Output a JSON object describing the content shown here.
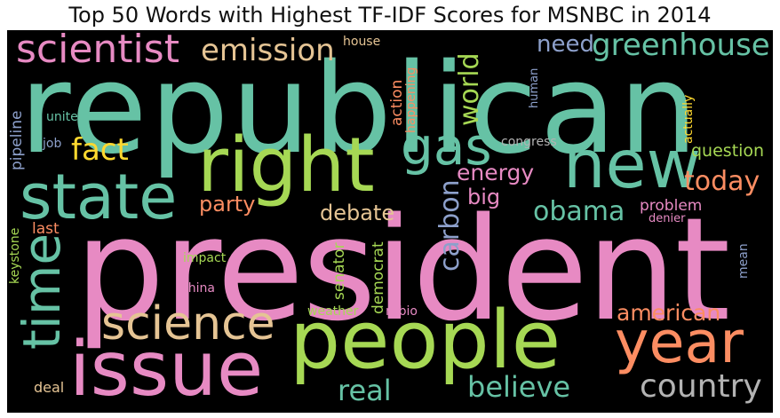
{
  "title": "Top 50 Words with Highest TF-IDF Scores for MSNBC in 2014",
  "palette": {
    "teal": "#66c2a5",
    "orange": "#fc8d62",
    "blue": "#8da0cb",
    "pink": "#e78ac3",
    "green": "#a6d854",
    "yellow": "#ffd92f",
    "tan": "#e5c494",
    "gray": "#b3b3b3"
  },
  "words": [
    {
      "text": "republican",
      "color": "#66c2a5"
    },
    {
      "text": "president",
      "color": "#e78ac3"
    },
    {
      "text": "people",
      "color": "#a6d854"
    },
    {
      "text": "right",
      "color": "#a6d854"
    },
    {
      "text": "state",
      "color": "#66c2a5"
    },
    {
      "text": "issue",
      "color": "#e78ac3"
    },
    {
      "text": "new",
      "color": "#66c2a5"
    },
    {
      "text": "year",
      "color": "#fc8d62"
    },
    {
      "text": "time",
      "color": "#66c2a5"
    },
    {
      "text": "science",
      "color": "#e5c494"
    },
    {
      "text": "scientist",
      "color": "#e78ac3"
    },
    {
      "text": "gas",
      "color": "#66c2a5"
    },
    {
      "text": "greenhouse",
      "color": "#66c2a5"
    },
    {
      "text": "emission",
      "color": "#e5c494"
    },
    {
      "text": "carbon",
      "color": "#8da0cb"
    },
    {
      "text": "country",
      "color": "#b3b3b3"
    },
    {
      "text": "believe",
      "color": "#66c2a5"
    },
    {
      "text": "real",
      "color": "#66c2a5"
    },
    {
      "text": "obama",
      "color": "#66c2a5"
    },
    {
      "text": "world",
      "color": "#a6d854"
    },
    {
      "text": "fact",
      "color": "#ffd92f"
    },
    {
      "text": "today",
      "color": "#fc8d62"
    },
    {
      "text": "american",
      "color": "#fc8d62"
    },
    {
      "text": "energy",
      "color": "#e78ac3"
    },
    {
      "text": "need",
      "color": "#8da0cb"
    },
    {
      "text": "debate",
      "color": "#e5c494"
    },
    {
      "text": "big",
      "color": "#e78ac3"
    },
    {
      "text": "party",
      "color": "#fc8d62"
    },
    {
      "text": "question",
      "color": "#a6d854"
    },
    {
      "text": "senator",
      "color": "#a6d854"
    },
    {
      "text": "democrat",
      "color": "#a6d854"
    },
    {
      "text": "pipeline",
      "color": "#8da0cb"
    },
    {
      "text": "action",
      "color": "#fc8d62"
    },
    {
      "text": "problem",
      "color": "#e78ac3"
    },
    {
      "text": "last",
      "color": "#fc8d62"
    },
    {
      "text": "deal",
      "color": "#e5c494"
    },
    {
      "text": "happening",
      "color": "#fc8d62"
    },
    {
      "text": "actually",
      "color": "#ffd92f"
    },
    {
      "text": "keystone",
      "color": "#a6d854"
    },
    {
      "text": "congress",
      "color": "#b3b3b3"
    },
    {
      "text": "impact",
      "color": "#a6d854"
    },
    {
      "text": "china",
      "color": "#e78ac3"
    },
    {
      "text": "weather",
      "color": "#a6d854"
    },
    {
      "text": "rubio",
      "color": "#e78ac3"
    },
    {
      "text": "denier",
      "color": "#e78ac3"
    },
    {
      "text": "house",
      "color": "#e5c494"
    },
    {
      "text": "human",
      "color": "#8da0cb"
    },
    {
      "text": "united",
      "color": "#66c2a5"
    },
    {
      "text": "job",
      "color": "#8da0cb"
    },
    {
      "text": "mean",
      "color": "#8da0cb"
    }
  ]
}
